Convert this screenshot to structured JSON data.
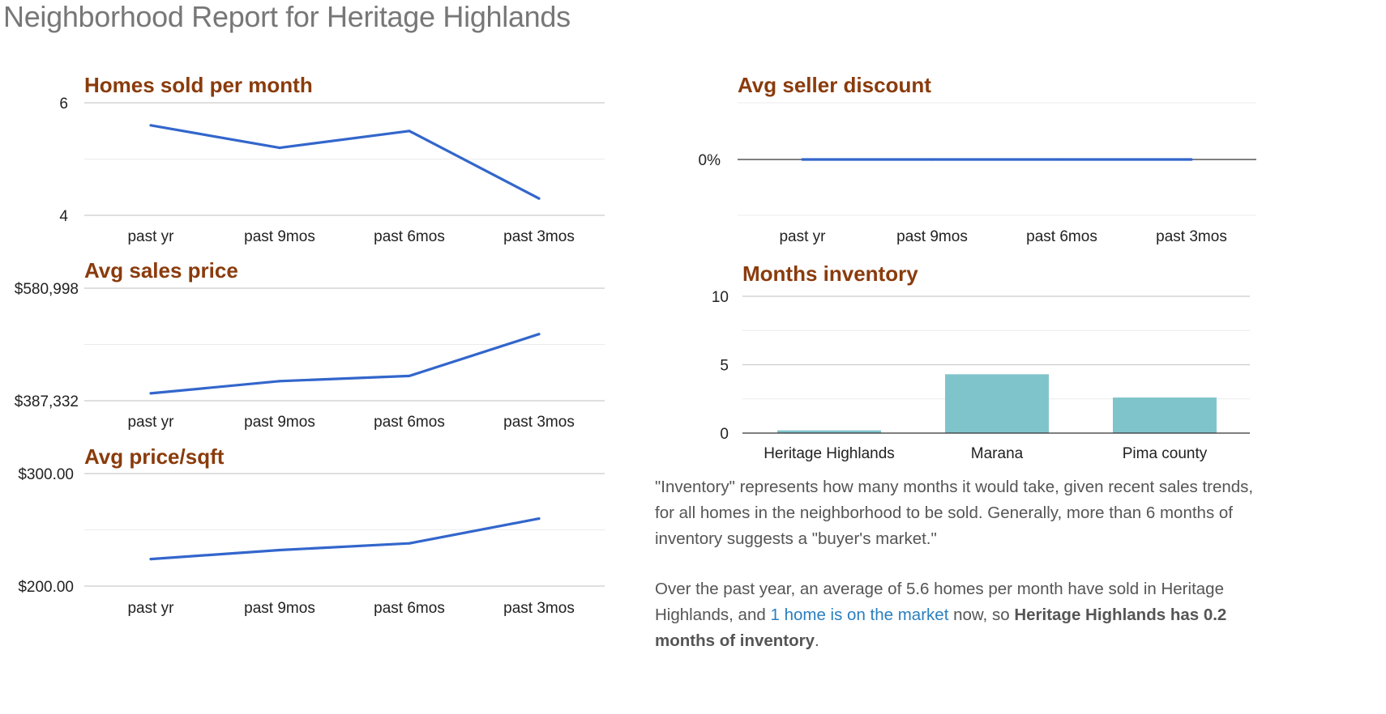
{
  "page": {
    "title": "Neighborhood Report for Heritage Highlands"
  },
  "chart_data": [
    {
      "id": "homes_sold",
      "type": "line",
      "title": "Homes sold per month",
      "categories": [
        "past yr",
        "past 9mos",
        "past 6mos",
        "past 3mos"
      ],
      "values": [
        5.6,
        5.2,
        5.5,
        4.3
      ],
      "ylim": [
        4,
        6
      ],
      "yticks": [
        "6",
        "4"
      ],
      "grid": true,
      "color": "#3366cc"
    },
    {
      "id": "avg_sales_price",
      "type": "line",
      "title": "Avg sales price",
      "categories": [
        "past yr",
        "past 9mos",
        "past 6mos",
        "past 3mos"
      ],
      "values": [
        400000,
        421000,
        430000,
        502000
      ],
      "ylim": [
        387332,
        580998
      ],
      "yticks": [
        "$580,998",
        "$387,332"
      ],
      "grid": true,
      "color": "#3366cc"
    },
    {
      "id": "avg_price_sqft",
      "type": "line",
      "title": "Avg price/sqft",
      "categories": [
        "past yr",
        "past 9mos",
        "past 6mos",
        "past 3mos"
      ],
      "values": [
        224,
        232,
        238,
        260
      ],
      "ylim": [
        200,
        300
      ],
      "yticks": [
        "$300.00",
        "$200.00"
      ],
      "grid": true,
      "color": "#3366cc"
    },
    {
      "id": "avg_seller_discount",
      "type": "line",
      "title": "Avg seller discount",
      "categories": [
        "past yr",
        "past 9mos",
        "past 6mos",
        "past 3mos"
      ],
      "values": [
        0,
        0,
        0,
        0
      ],
      "yticks": [
        "0%"
      ],
      "grid": true,
      "color": "#3366cc"
    },
    {
      "id": "months_inventory",
      "type": "bar",
      "title": "Months inventory",
      "categories": [
        "Heritage Highlands",
        "Marana",
        "Pima county"
      ],
      "values": [
        0.2,
        4.3,
        2.6
      ],
      "ylim": [
        0,
        10
      ],
      "yticks": [
        "10",
        "5",
        "0"
      ],
      "grid": true,
      "color": "#80c4cb"
    }
  ],
  "explanation": {
    "paragraph1": "\"Inventory\" represents how many months it would take, given recent sales trends, for all homes in the neighborhood to be sold. Generally, more than 6 months of inventory suggests a \"buyer's market.\"",
    "p2_before": "Over the past year, an average of 5.6 homes per month have sold in Heritage Highlands, and ",
    "p2_link": "1 home is on the market",
    "p2_middle": " now, so ",
    "p2_bold": "Heritage Highlands has 0.2 months of inventory",
    "p2_end": "."
  }
}
